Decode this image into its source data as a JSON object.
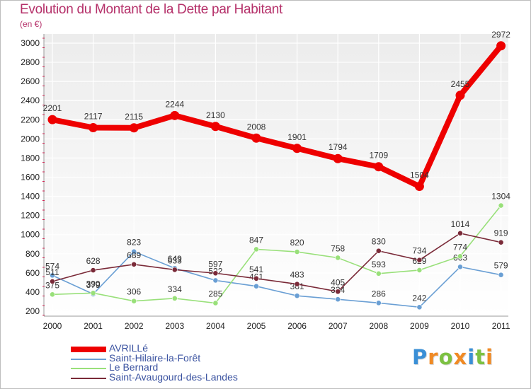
{
  "title": "Evolution du Montant de la Dette par Habitant",
  "unit": "(en €)",
  "logo": {
    "letters": [
      "P",
      "r",
      "o",
      "x",
      "i",
      "t",
      "i"
    ],
    "colors": [
      "#3a8fd6",
      "#f08a24",
      "#7cc142",
      "#f08a24",
      "#3a8fd6",
      "#7cc142",
      "#f08a24"
    ]
  },
  "chart_data": {
    "type": "line",
    "title": "Evolution du Montant de la Dette par Habitant",
    "ylabel": "(en €)",
    "xlabel": "",
    "x": [
      "2000",
      "2001",
      "2002",
      "2003",
      "2004",
      "2005",
      "2006",
      "2007",
      "2008",
      "2009",
      "2010",
      "2011"
    ],
    "ylim": [
      200,
      3000
    ],
    "yticks": [
      200,
      400,
      600,
      800,
      1000,
      1200,
      1400,
      1600,
      1800,
      2000,
      2200,
      2400,
      2600,
      2800,
      3000
    ],
    "grid": true,
    "legend_position": "bottom-left",
    "series": [
      {
        "name": "AVRILLé",
        "color": "#ee0000",
        "bold": true,
        "values": [
          2201,
          2117,
          2115,
          2244,
          2130,
          2008,
          1901,
          1794,
          1709,
          1504,
          2455,
          2972
        ]
      },
      {
        "name": "Saint-Hilaire-la-Forêt",
        "color": "#6a9fd4",
        "bold": false,
        "values": [
          574,
          379,
          823,
          649,
          522,
          461,
          361,
          324,
          286,
          242,
          663,
          579
        ]
      },
      {
        "name": "Le Bernard",
        "color": "#99e07a",
        "bold": false,
        "values": [
          375,
          390,
          306,
          334,
          285,
          847,
          820,
          758,
          593,
          629,
          774,
          1304
        ]
      },
      {
        "name": "Saint-Avaugourd-des-Landes",
        "color": "#7a2a38",
        "bold": false,
        "values": [
          511,
          628,
          689,
          633,
          597,
          541,
          483,
          405,
          830,
          734,
          1014,
          919
        ]
      }
    ]
  }
}
